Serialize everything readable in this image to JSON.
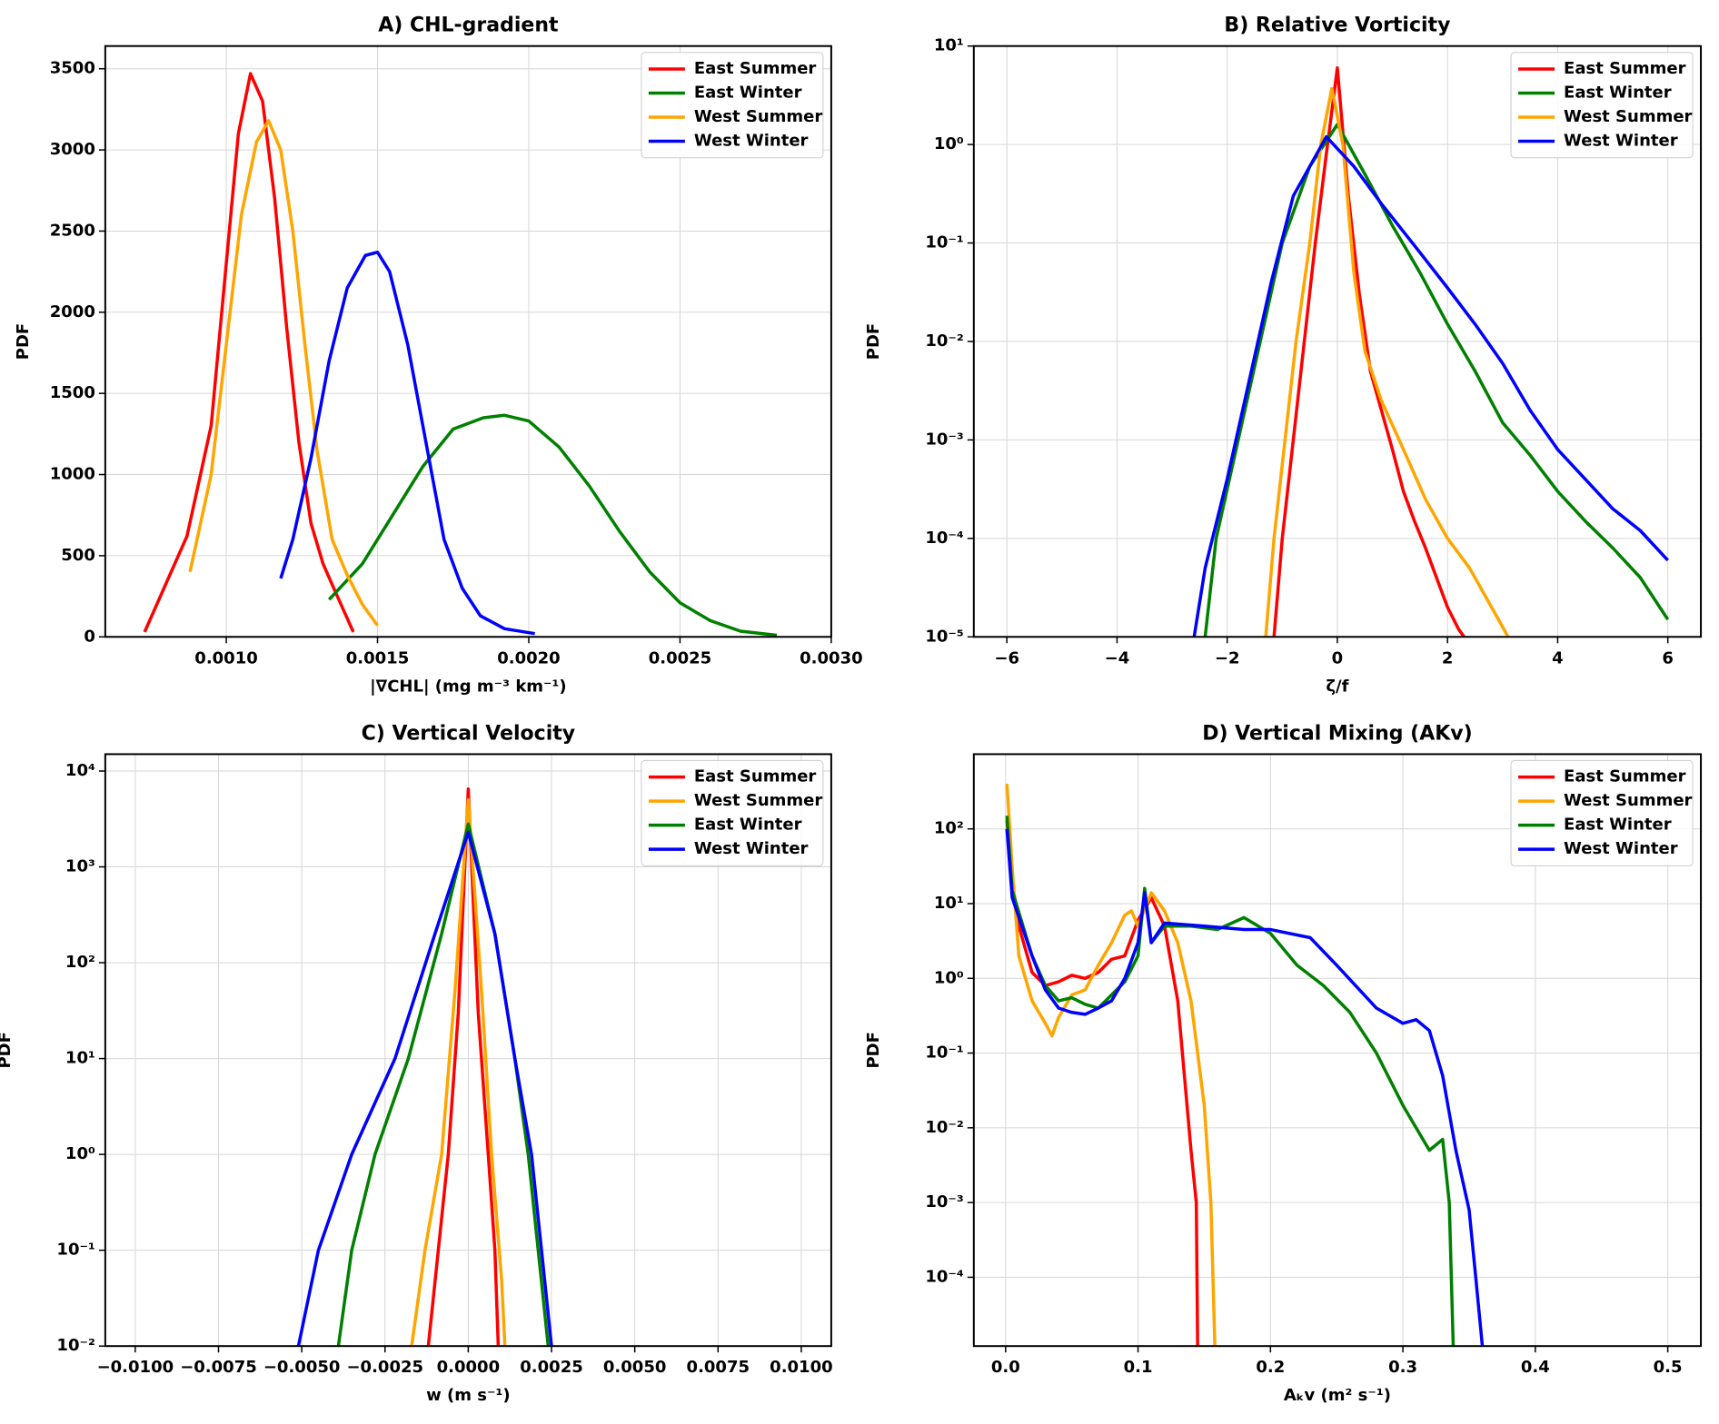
{
  "chart_data": [
    {
      "type": "line",
      "title": "A) CHL-gradient",
      "xlabel": "|∇CHL| (mg m⁻³ km⁻¹)",
      "ylabel": "PDF",
      "xlim": [
        0.0006,
        0.003
      ],
      "ylim": [
        0,
        3640
      ],
      "xticks": [
        {
          "value": 0.001,
          "label": "0.0010"
        },
        {
          "value": 0.0015,
          "label": "0.0015"
        },
        {
          "value": 0.002,
          "label": "0.0020"
        },
        {
          "value": 0.0025,
          "label": "0.0025"
        },
        {
          "value": 0.003,
          "label": "0.0030"
        }
      ],
      "yticks": [
        0,
        500,
        1000,
        1500,
        2000,
        2500,
        3000,
        3500
      ],
      "grid": true,
      "legend": "upper right",
      "series": [
        {
          "name": "East Summer",
          "color": "#ff0000",
          "x": [
            0.00073,
            0.00087,
            0.00095,
            0.001,
            0.00104,
            0.00108,
            0.00112,
            0.00116,
            0.0012,
            0.00124,
            0.00128,
            0.00132,
            0.00136,
            0.00142
          ],
          "values": [
            30,
            620,
            1300,
            2300,
            3100,
            3470,
            3300,
            2700,
            1900,
            1200,
            700,
            450,
            280,
            30
          ]
        },
        {
          "name": "East Winter",
          "color": "#008000",
          "x": [
            0.00134,
            0.00145,
            0.00155,
            0.00165,
            0.00175,
            0.00185,
            0.00192,
            0.002,
            0.0021,
            0.0022,
            0.0023,
            0.0024,
            0.0025,
            0.0026,
            0.0027,
            0.00282
          ],
          "values": [
            230,
            450,
            750,
            1050,
            1280,
            1350,
            1365,
            1330,
            1170,
            930,
            650,
            400,
            210,
            100,
            35,
            10
          ]
        },
        {
          "name": "West Summer",
          "color": "#ffa500",
          "x": [
            0.00088,
            0.00095,
            0.001,
            0.00105,
            0.0011,
            0.00114,
            0.00118,
            0.00122,
            0.00126,
            0.0013,
            0.00135,
            0.0014,
            0.00145,
            0.0015
          ],
          "values": [
            400,
            1000,
            1800,
            2600,
            3050,
            3180,
            3000,
            2500,
            1800,
            1150,
            600,
            380,
            200,
            70
          ]
        },
        {
          "name": "West Winter",
          "color": "#0000ff",
          "x": [
            0.00118,
            0.00122,
            0.00128,
            0.00134,
            0.0014,
            0.00146,
            0.0015,
            0.00154,
            0.0016,
            0.00166,
            0.00172,
            0.00178,
            0.00184,
            0.00192,
            0.00202
          ],
          "values": [
            360,
            600,
            1100,
            1700,
            2150,
            2350,
            2370,
            2250,
            1800,
            1200,
            600,
            300,
            130,
            50,
            20
          ]
        }
      ]
    },
    {
      "type": "line",
      "title": "B) Relative Vorticity",
      "xlabel": "ζ/f",
      "ylabel": "PDF",
      "yscale": "log",
      "xlim": [
        -6.6,
        6.6
      ],
      "ylim": [
        1e-05,
        10
      ],
      "xticks": [
        {
          "value": -6,
          "label": "−6"
        },
        {
          "value": -4,
          "label": "−4"
        },
        {
          "value": -2,
          "label": "−2"
        },
        0,
        2,
        4,
        6
      ],
      "yticks": [
        {
          "value": 1e-05,
          "label": "10⁻⁵"
        },
        {
          "value": 0.0001,
          "label": "10⁻⁴"
        },
        {
          "value": 0.001,
          "label": "10⁻³"
        },
        {
          "value": 0.01,
          "label": "10⁻²"
        },
        {
          "value": 0.1,
          "label": "10⁻¹"
        },
        {
          "value": 1,
          "label": "10⁰"
        },
        {
          "value": 10,
          "label": "10¹"
        }
      ],
      "grid": true,
      "legend": "upper right",
      "series": [
        {
          "name": "East Summer",
          "color": "#ff0000",
          "x": [
            -1.15,
            -1.0,
            -0.8,
            -0.6,
            -0.4,
            -0.2,
            0,
            0.2,
            0.4,
            0.6,
            0.8,
            1.0,
            1.2,
            1.4,
            1.6,
            1.8,
            2.0,
            2.2,
            2.3
          ],
          "values": [
            1e-05,
            0.0001,
            0.001,
            0.01,
            0.1,
            0.8,
            6,
            0.3,
            0.03,
            0.005,
            0.002,
            0.0008,
            0.0003,
            0.00015,
            8e-05,
            4e-05,
            2e-05,
            1.2e-05,
            1e-05
          ]
        },
        {
          "name": "East Winter",
          "color": "#008000",
          "x": [
            -2.4,
            -2.2,
            -1.8,
            -1.4,
            -1.0,
            -0.5,
            0,
            0.5,
            1.0,
            1.5,
            2.0,
            2.5,
            3.0,
            3.5,
            4.0,
            4.5,
            5.0,
            5.5,
            6.0
          ],
          "values": [
            1e-05,
            0.0001,
            0.001,
            0.01,
            0.1,
            0.6,
            1.6,
            0.5,
            0.15,
            0.05,
            0.015,
            0.005,
            0.0015,
            0.0007,
            0.0003,
            0.00015,
            8e-05,
            4e-05,
            1.5e-05
          ]
        },
        {
          "name": "West Summer",
          "color": "#ffa500",
          "x": [
            -1.3,
            -1.15,
            -0.95,
            -0.75,
            -0.5,
            -0.3,
            -0.1,
            0.1,
            0.3,
            0.5,
            0.8,
            1.2,
            1.6,
            2.0,
            2.4,
            2.8,
            3.1
          ],
          "values": [
            1e-05,
            0.0001,
            0.001,
            0.01,
            0.1,
            1,
            3.7,
            1,
            0.05,
            0.008,
            0.0025,
            0.0008,
            0.00025,
            0.0001,
            5e-05,
            2e-05,
            1e-05
          ]
        },
        {
          "name": "West Winter",
          "color": "#0000ff",
          "x": [
            -2.6,
            -2.4,
            -2.0,
            -1.6,
            -1.2,
            -0.8,
            -0.2,
            0.3,
            0.8,
            1.5,
            2.0,
            2.5,
            3.0,
            3.5,
            4.0,
            4.5,
            5.0,
            5.5,
            6.0
          ],
          "values": [
            1e-05,
            5e-05,
            0.0004,
            0.004,
            0.04,
            0.3,
            1.2,
            0.6,
            0.25,
            0.08,
            0.035,
            0.015,
            0.006,
            0.002,
            0.0008,
            0.0004,
            0.0002,
            0.00012,
            6e-05
          ]
        }
      ]
    },
    {
      "type": "line",
      "title": "C) Vertical Velocity",
      "xlabel": "w (m s⁻¹)",
      "ylabel": "PDF",
      "yscale": "log",
      "xlim": [
        -0.0109,
        0.0109
      ],
      "ylim": [
        0.01,
        15000
      ],
      "xticks": [
        {
          "value": -0.01,
          "label": "−0.0100"
        },
        {
          "value": -0.0075,
          "label": "−0.0075"
        },
        {
          "value": -0.005,
          "label": "−0.0050"
        },
        {
          "value": -0.0025,
          "label": "−0.0025"
        },
        {
          "value": 0,
          "label": "0.0000"
        },
        {
          "value": 0.0025,
          "label": "0.0025"
        },
        {
          "value": 0.005,
          "label": "0.0050"
        },
        {
          "value": 0.0075,
          "label": "0.0075"
        },
        {
          "value": 0.01,
          "label": "0.0100"
        }
      ],
      "yticks": [
        {
          "value": 0.01,
          "label": "10⁻²"
        },
        {
          "value": 0.1,
          "label": "10⁻¹"
        },
        {
          "value": 1,
          "label": "10⁰"
        },
        {
          "value": 10,
          "label": "10¹"
        },
        {
          "value": 100,
          "label": "10²"
        },
        {
          "value": 1000,
          "label": "10³"
        },
        {
          "value": 10000,
          "label": "10⁴"
        }
      ],
      "grid": true,
      "legend": "upper right",
      "series": [
        {
          "name": "East Summer",
          "color": "#ff0000",
          "x": [
            -0.0012,
            -0.0009,
            -0.0006,
            -0.0003,
            0,
            0.0003,
            0.0006,
            0.0008,
            0.0009
          ],
          "values": [
            0.01,
            0.1,
            1,
            30,
            6500,
            30,
            1,
            0.1,
            0.01
          ]
        },
        {
          "name": "West Summer",
          "color": "#ffa500",
          "x": [
            -0.0017,
            -0.0013,
            -0.0008,
            -0.0004,
            0,
            0.0004,
            0.0007,
            0.001,
            0.0011
          ],
          "values": [
            0.01,
            0.1,
            1,
            50,
            5000,
            50,
            1,
            0.05,
            0.01
          ]
        },
        {
          "name": "East Winter",
          "color": "#008000",
          "x": [
            -0.0039,
            -0.0035,
            -0.0028,
            -0.0018,
            -0.0008,
            0,
            0.0008,
            0.0014,
            0.0018,
            0.0021,
            0.0024
          ],
          "values": [
            0.01,
            0.1,
            1,
            10,
            200,
            2800,
            200,
            10,
            1,
            0.1,
            0.01
          ]
        },
        {
          "name": "West Winter",
          "color": "#0000ff",
          "x": [
            -0.0051,
            -0.0045,
            -0.0035,
            -0.0022,
            -0.001,
            0,
            0.0008,
            0.0014,
            0.0019,
            0.0022,
            0.0025
          ],
          "values": [
            0.01,
            0.1,
            1,
            10,
            200,
            2300,
            200,
            10,
            1,
            0.1,
            0.01
          ]
        }
      ]
    },
    {
      "type": "line",
      "title": "D) Vertical Mixing (AKv)",
      "xlabel": "Aₖv (m² s⁻¹)",
      "ylabel": "PDF",
      "yscale": "log",
      "xlim": [
        -0.024,
        0.525
      ],
      "ylim": [
        1.2e-05,
        1000
      ],
      "xticks": [
        {
          "value": 0,
          "label": "0.0"
        },
        {
          "value": 0.1,
          "label": "0.1"
        },
        {
          "value": 0.2,
          "label": "0.2"
        },
        {
          "value": 0.3,
          "label": "0.3"
        },
        {
          "value": 0.4,
          "label": "0.4"
        },
        {
          "value": 0.5,
          "label": "0.5"
        }
      ],
      "yticks": [
        {
          "value": 0.0001,
          "label": "10⁻⁴"
        },
        {
          "value": 0.001,
          "label": "10⁻³"
        },
        {
          "value": 0.01,
          "label": "10⁻²"
        },
        {
          "value": 0.1,
          "label": "10⁻¹"
        },
        {
          "value": 1,
          "label": "10⁰"
        },
        {
          "value": 10,
          "label": "10¹"
        },
        {
          "value": 100,
          "label": "10²"
        }
      ],
      "grid": true,
      "legend": "upper right",
      "series": [
        {
          "name": "East Summer",
          "color": "#ff0000",
          "x": [
            0.001,
            0.005,
            0.01,
            0.02,
            0.03,
            0.04,
            0.05,
            0.06,
            0.07,
            0.08,
            0.09,
            0.1,
            0.11,
            0.12,
            0.13,
            0.135,
            0.14,
            0.144,
            0.145
          ],
          "values": [
            130,
            20,
            5,
            1.2,
            0.8,
            0.9,
            1.1,
            1.0,
            1.2,
            1.8,
            2.0,
            6,
            12,
            5,
            0.5,
            0.05,
            0.005,
            0.001,
            1.2e-05
          ]
        },
        {
          "name": "West Summer",
          "color": "#ffa500",
          "x": [
            0.001,
            0.005,
            0.01,
            0.02,
            0.03,
            0.035,
            0.04,
            0.05,
            0.06,
            0.07,
            0.08,
            0.09,
            0.095,
            0.1,
            0.11,
            0.12,
            0.13,
            0.14,
            0.15,
            0.155,
            0.158
          ],
          "values": [
            400,
            30,
            2,
            0.5,
            0.25,
            0.17,
            0.3,
            0.6,
            0.7,
            1.5,
            3,
            7,
            8,
            5,
            14,
            8,
            3,
            0.5,
            0.02,
            0.001,
            1.2e-05
          ]
        },
        {
          "name": "East Winter",
          "color": "#008000",
          "x": [
            0.001,
            0.005,
            0.02,
            0.03,
            0.04,
            0.05,
            0.06,
            0.07,
            0.08,
            0.09,
            0.1,
            0.105,
            0.11,
            0.12,
            0.14,
            0.16,
            0.18,
            0.2,
            0.22,
            0.24,
            0.26,
            0.28,
            0.3,
            0.32,
            0.33,
            0.335,
            0.338
          ],
          "values": [
            150,
            15,
            2,
            0.8,
            0.5,
            0.55,
            0.45,
            0.4,
            0.6,
            0.9,
            2,
            16,
            3,
            5,
            5,
            4.5,
            6.5,
            4,
            1.5,
            0.8,
            0.35,
            0.1,
            0.02,
            0.005,
            0.007,
            0.001,
            1.2e-05
          ]
        },
        {
          "name": "West Winter",
          "color": "#0000ff",
          "x": [
            0.001,
            0.005,
            0.02,
            0.03,
            0.04,
            0.05,
            0.06,
            0.07,
            0.08,
            0.09,
            0.1,
            0.105,
            0.11,
            0.12,
            0.15,
            0.18,
            0.2,
            0.23,
            0.25,
            0.28,
            0.3,
            0.31,
            0.32,
            0.33,
            0.34,
            0.35,
            0.355,
            0.36
          ],
          "values": [
            100,
            12,
            2,
            0.7,
            0.4,
            0.35,
            0.33,
            0.4,
            0.5,
            1,
            3,
            14,
            3,
            5.5,
            5,
            4.5,
            4.5,
            3.5,
            1.5,
            0.4,
            0.25,
            0.28,
            0.2,
            0.05,
            0.005,
            0.0008,
            0.0001,
            1.2e-05
          ]
        }
      ]
    }
  ]
}
